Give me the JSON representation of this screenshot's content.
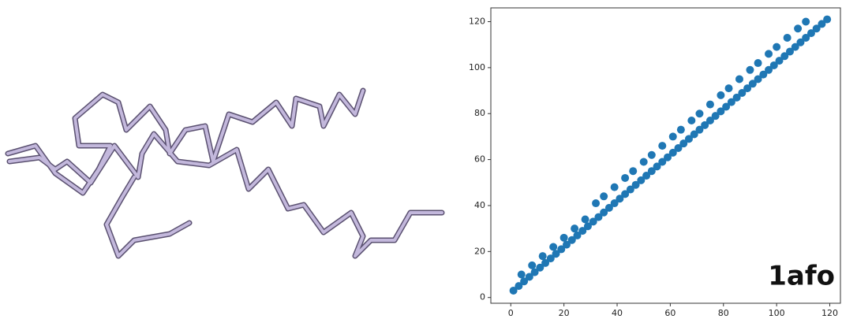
{
  "chart_data": {
    "type": "scatter",
    "annotation": "1afo",
    "x": [
      1,
      3,
      5,
      7,
      9,
      11,
      13,
      15,
      17,
      19,
      21,
      23,
      25,
      27,
      29,
      31,
      33,
      35,
      37,
      39,
      41,
      43,
      45,
      47,
      49,
      51,
      53,
      55,
      57,
      59,
      61,
      63,
      65,
      67,
      69,
      71,
      73,
      75,
      77,
      79,
      81,
      83,
      85,
      87,
      89,
      91,
      93,
      95,
      97,
      99,
      101,
      103,
      105,
      107,
      109,
      111,
      113,
      115,
      117,
      119,
      4,
      8,
      12,
      16,
      20,
      24,
      28,
      32,
      35,
      39,
      43,
      46,
      50,
      53,
      57,
      61,
      64,
      68,
      71,
      75,
      79,
      82,
      86,
      90,
      93,
      97,
      100,
      104,
      108,
      111
    ],
    "values": [
      3,
      5,
      7,
      9,
      11,
      13,
      15,
      17,
      19,
      21,
      23,
      25,
      27,
      29,
      31,
      33,
      35,
      37,
      39,
      41,
      43,
      45,
      47,
      49,
      51,
      53,
      55,
      57,
      59,
      61,
      63,
      65,
      67,
      69,
      71,
      73,
      75,
      77,
      79,
      81,
      83,
      85,
      87,
      89,
      91,
      93,
      95,
      97,
      99,
      101,
      103,
      105,
      107,
      109,
      111,
      113,
      115,
      117,
      119,
      121,
      10,
      14,
      18,
      22,
      26,
      30,
      34,
      41,
      44,
      48,
      52,
      55,
      59,
      62,
      66,
      70,
      73,
      77,
      80,
      84,
      88,
      91,
      95,
      99,
      102,
      106,
      109,
      113,
      117,
      120
    ],
    "color": "#1f77b4",
    "xlim": [
      -7.5,
      124
    ],
    "ylim": [
      -2.5,
      126
    ],
    "xticks": [
      0,
      20,
      40,
      60,
      80,
      100,
      120
    ],
    "yticks": [
      0,
      20,
      40,
      60,
      80,
      100,
      120
    ]
  }
}
